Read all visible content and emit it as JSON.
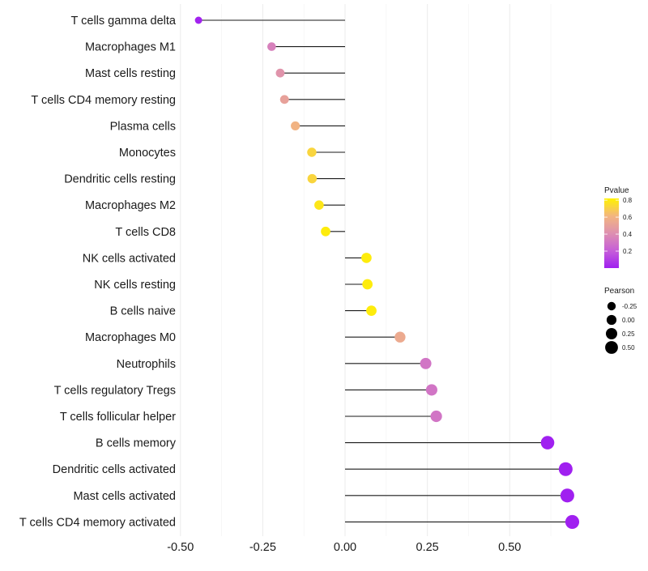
{
  "chart_data": {
    "type": "lollipop",
    "title": "",
    "xlabel": "",
    "ylabel": "",
    "xlim": [
      -0.52,
      0.7
    ],
    "xticks": [
      -0.5,
      -0.25,
      0.0,
      0.25,
      0.5
    ],
    "xtick_labels": [
      "-0.50",
      "-0.25",
      "0.00",
      "0.25",
      "0.50"
    ],
    "grid": true,
    "categories": [
      "T cells gamma delta",
      "Macrophages M1",
      "Mast cells resting",
      "T cells CD4 memory resting",
      "Plasma cells",
      "Monocytes",
      "Dendritic cells resting",
      "Macrophages M2",
      "T cells CD8",
      "NK cells activated",
      "NK cells resting",
      "B cells naive",
      "Macrophages M0",
      "Neutrophils",
      "T cells regulatory  Tregs",
      "T cells follicular helper",
      "B cells memory",
      "Dendritic cells activated",
      "Mast cells activated",
      "T cells CD4 memory activated"
    ],
    "pearson": [
      -0.445,
      -0.223,
      -0.197,
      -0.184,
      -0.151,
      -0.101,
      -0.1,
      -0.079,
      -0.059,
      0.065,
      0.068,
      0.08,
      0.167,
      0.245,
      0.263,
      0.277,
      0.615,
      0.67,
      0.675,
      0.69
    ],
    "pvalue": [
      0.01,
      0.35,
      0.43,
      0.5,
      0.6,
      0.72,
      0.72,
      0.78,
      0.8,
      0.8,
      0.8,
      0.8,
      0.55,
      0.3,
      0.3,
      0.3,
      0.0,
      0.0,
      0.0,
      0.0
    ],
    "color_legend": {
      "title": "Pvalue",
      "ticks": [
        0.2,
        0.4,
        0.6,
        0.8
      ],
      "tick_labels": [
        "0.2",
        "0.4",
        "0.6",
        "0.8"
      ],
      "range": [
        0.0,
        0.82
      ],
      "low_color": "#a020f0",
      "mid_color": "#e98fa6",
      "high_color": "#ffff00"
    },
    "size_legend": {
      "title": "Pearson",
      "values": [
        -0.25,
        0.0,
        0.25,
        0.5
      ],
      "labels": [
        "-0.25",
        "0.00",
        "0.25",
        "0.50"
      ]
    },
    "legend_position": "right"
  }
}
